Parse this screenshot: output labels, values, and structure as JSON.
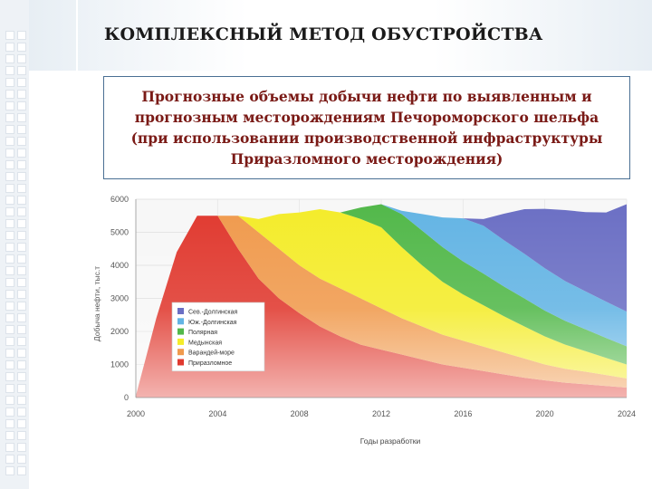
{
  "slide": {
    "title": "КОМПЛЕКСНЫЙ МЕТОД ОБУСТРОЙСТВА",
    "subtitle_lines": [
      "Прогнозные объемы добычи нефти по выявленным и",
      "прогнозным месторождениям Печороморского шельфа",
      "(при использовании производственной инфраструктуры",
      "Приразломного месторождения)"
    ]
  },
  "chart_data": {
    "type": "area",
    "stacked": true,
    "xlabel": "Годы разработки",
    "ylabel": "Добыча нефти, тыс.т",
    "xlim": [
      2000,
      2024
    ],
    "ylim": [
      0,
      6000
    ],
    "x_ticks": [
      "2000",
      "2004",
      "2008",
      "2012",
      "2016",
      "2020",
      "2024"
    ],
    "y_ticks": [
      "0",
      "1000",
      "2000",
      "3000",
      "4000",
      "5000",
      "6000"
    ],
    "legend_position": "lower-left",
    "x": [
      2000,
      2001,
      2002,
      2003,
      2004,
      2005,
      2006,
      2007,
      2008,
      2009,
      2010,
      2011,
      2012,
      2013,
      2014,
      2015,
      2016,
      2017,
      2018,
      2019,
      2020,
      2021,
      2022,
      2023,
      2024
    ],
    "series": [
      {
        "name": "Приразломное",
        "color": "#e0392f",
        "values": [
          50,
          2400,
          4400,
          5500,
          5500,
          4500,
          3600,
          3000,
          2550,
          2150,
          1850,
          1600,
          1450,
          1300,
          1150,
          1000,
          900,
          800,
          700,
          600,
          520,
          450,
          400,
          350,
          300
        ]
      },
      {
        "name": "Варандей-море",
        "color": "#f09a4d",
        "values": [
          0,
          0,
          0,
          0,
          0,
          1000,
          1400,
          1500,
          1450,
          1450,
          1450,
          1400,
          1250,
          1100,
          1000,
          900,
          820,
          740,
          660,
          580,
          480,
          420,
          380,
          330,
          280
        ]
      },
      {
        "name": "Медынская",
        "color": "#f4ec2a",
        "values": [
          0,
          0,
          0,
          0,
          0,
          0,
          400,
          1050,
          1600,
          2100,
          2300,
          2400,
          2450,
          2150,
          1850,
          1600,
          1400,
          1250,
          1100,
          970,
          850,
          730,
          620,
          520,
          420
        ]
      },
      {
        "name": "Полярная",
        "color": "#52b84a",
        "values": [
          0,
          0,
          0,
          0,
          0,
          0,
          0,
          0,
          0,
          0,
          0,
          350,
          700,
          1000,
          1050,
          1050,
          1000,
          960,
          900,
          850,
          780,
          720,
          660,
          600,
          550
        ]
      },
      {
        "name": "Юж.-Долгинская",
        "color": "#63b4e4",
        "values": [
          0,
          0,
          0,
          0,
          0,
          0,
          0,
          0,
          0,
          0,
          0,
          0,
          0,
          100,
          500,
          900,
          1300,
          1450,
          1400,
          1350,
          1280,
          1200,
          1150,
          1100,
          1050
        ]
      },
      {
        "name": "Сев.-Долгинская",
        "color": "#6b6fc4",
        "values": [
          0,
          0,
          0,
          0,
          0,
          0,
          0,
          0,
          0,
          0,
          0,
          0,
          0,
          0,
          0,
          0,
          0,
          200,
          800,
          1350,
          1800,
          2150,
          2400,
          2700,
          3250
        ]
      }
    ]
  }
}
